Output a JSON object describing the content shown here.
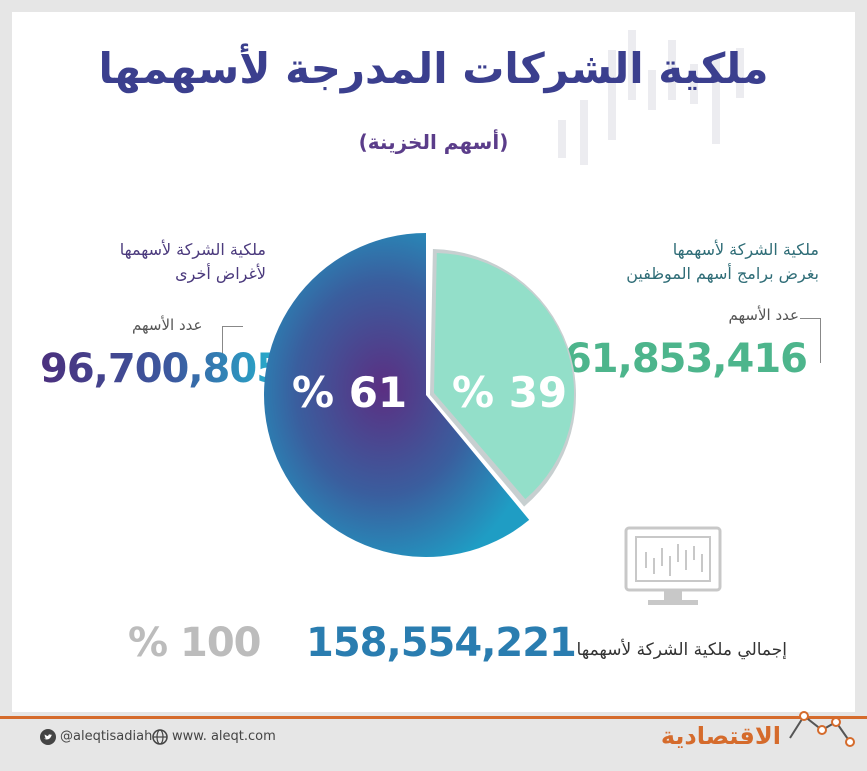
{
  "header": {
    "title": "ملكية الشركات المدرجة لأسهمها",
    "subtitle": "(أسهم الخزينة)"
  },
  "segments": {
    "employee": {
      "label_line1": "ملكية الشركة لأسهمها",
      "label_line2": "بغرض برامج أسهم الموظفين",
      "count_label": "عدد الأسهم",
      "count": "61,853,416",
      "percent_label": "% 39"
    },
    "other": {
      "label_line1": "ملكية الشركة لأسهمها",
      "label_line2": "لأغراض أخرى",
      "count_label": "عدد الأسهم",
      "count": "96,700,805",
      "percent_label": "% 61"
    }
  },
  "total": {
    "label": "إجمالي ملكية الشركة لأسهمها",
    "count": "158,554,221",
    "percent_label": "% 100"
  },
  "chart_data": {
    "type": "pie",
    "slices": [
      {
        "label": "ملكية الشركة لأسهمها بغرض برامج أسهم الموظفين",
        "value": 61853416,
        "percent": 39,
        "color": "#93dfc9"
      },
      {
        "label": "ملكية الشركة لأسهمها لأغراض أخرى",
        "value": 96700805,
        "percent": 61,
        "color": "#2a8fc0"
      }
    ],
    "title": "ملكية الشركات المدرجة لأسهمها",
    "subtitle": "(أسهم الخزينة)"
  },
  "footer": {
    "twitter": "@aleqtisadiah",
    "website": "www. aleqt.com",
    "logo": "الاقتصادية"
  },
  "colors": {
    "title": "#3b3f8e",
    "accent_orange": "#d56b2c",
    "teal_light": "#93dfc9",
    "blue": "#2a8fc0",
    "purple": "#4b2f7d"
  },
  "icons": [
    "monitor-chart-icon",
    "twitter-icon",
    "globe-icon",
    "logo-chart-line-icon"
  ]
}
